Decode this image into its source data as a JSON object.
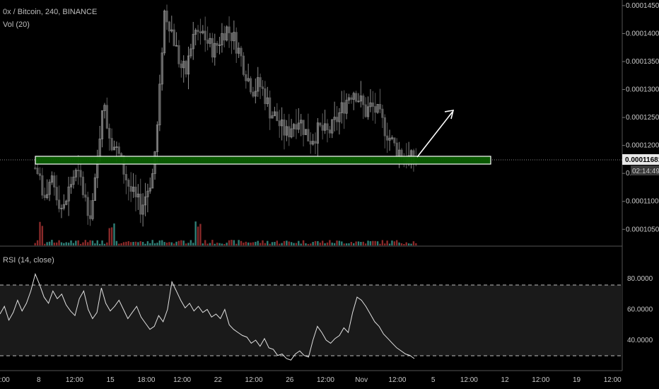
{
  "header": {
    "symbol_line": "0x / Bitcoin, 240, BINANCE",
    "volume_label": "Vol (20)"
  },
  "rsi_panel": {
    "label": "RSI (14, close)"
  },
  "price_axis": {
    "ticks": [
      "0.00014500",
      "0.00014000",
      "0.00013500",
      "0.00013000",
      "0.00012500",
      "0.00012000",
      "0.00011500",
      "0.00011000",
      "0.00010500"
    ],
    "current_price": "0.00011681",
    "countdown": "02:14:49"
  },
  "rsi_axis": {
    "ticks": [
      "80.0000",
      "60.0000",
      "40.0000"
    ]
  },
  "time_axis": {
    "ticks": [
      {
        "label": "0:00"
      },
      {
        "label": "8"
      },
      {
        "label": "12:00"
      },
      {
        "label": "15"
      },
      {
        "label": "18:00"
      },
      {
        "label": "12:00"
      },
      {
        "label": "22"
      },
      {
        "label": "12:00"
      },
      {
        "label": "26"
      },
      {
        "label": "12:00"
      },
      {
        "label": "Nov"
      },
      {
        "label": "12:00"
      },
      {
        "label": "5"
      },
      {
        "label": "12:00"
      },
      {
        "label": "12"
      },
      {
        "label": "12:00"
      },
      {
        "label": "19"
      },
      {
        "label": "12:00"
      }
    ]
  },
  "colors": {
    "background": "#000000",
    "up_candle": "#8a8a8a",
    "down_candle": "#5c5c5c",
    "support_zone_fill": "#0a5d00",
    "support_zone_border": "#ffffff",
    "volume_up": "#2f7f76",
    "volume_down": "#8a2a2a",
    "rsi_line": "#e0e0e0",
    "arrow": "#ffffff"
  },
  "chart_data": {
    "type": "candlestick",
    "symbol": "0x / Bitcoin",
    "interval": "240",
    "exchange": "BINANCE",
    "current_price": 0.00011681,
    "support_zone": {
      "low": 0.0001162,
      "high": 0.0001174
    },
    "projection_arrow": {
      "from_price": 0.0001168,
      "to_price": 0.0001258
    },
    "price_ylim": [
      0.000102,
      0.000146
    ],
    "close_path": [
      0.000116,
      0.000114,
      0.000109,
      0.000114,
      0.000111,
      0.000108,
      0.000112,
      0.000115,
      0.000114,
      0.00011,
      0.000108,
      0.000115,
      0.000128,
      0.000123,
      0.00012,
      0.000118,
      0.000115,
      0.000112,
      0.00011,
      0.000109,
      0.000112,
      0.000115,
      0.000125,
      0.000144,
      0.000142,
      0.000138,
      0.000134,
      0.000133,
      0.000139,
      0.000141,
      0.00014,
      0.000138,
      0.000137,
      0.000139,
      0.000141,
      0.00014,
      0.000138,
      0.000135,
      0.000132,
      0.00013,
      0.000131,
      0.000129,
      0.000126,
      0.000125,
      0.000123,
      0.000122,
      0.000124,
      0.000125,
      0.000123,
      0.000121,
      0.000122,
      0.000123,
      0.000122,
      0.000123,
      0.000125,
      0.000127,
      0.000129,
      0.00013,
      0.000128,
      0.000126,
      0.000127,
      0.000126,
      0.000124,
      0.000122,
      0.00012,
      0.000119,
      0.000118,
      0.0001175,
      0.000117
    ],
    "rsi": {
      "ylim": [
        22,
        92
      ],
      "levels": [
        70,
        30
      ],
      "values": [
        57,
        62,
        53,
        58,
        66,
        59,
        64,
        72,
        83,
        76,
        68,
        64,
        72,
        67,
        70,
        63,
        59,
        56,
        67,
        72,
        60,
        54,
        58,
        74,
        64,
        59,
        62,
        66,
        60,
        54,
        58,
        62,
        55,
        51,
        47,
        49,
        56,
        52,
        60,
        78,
        72,
        66,
        61,
        64,
        59,
        62,
        58,
        60,
        55,
        57,
        54,
        60,
        50,
        47,
        45,
        43,
        42,
        38,
        40,
        36,
        41,
        35,
        34,
        30,
        31,
        28,
        27,
        31,
        33,
        30,
        29,
        40,
        49,
        45,
        40,
        38,
        41,
        43,
        48,
        45,
        58,
        68,
        66,
        62,
        57,
        52,
        49,
        44,
        41,
        38,
        35,
        33,
        31,
        30,
        28
      ]
    }
  }
}
